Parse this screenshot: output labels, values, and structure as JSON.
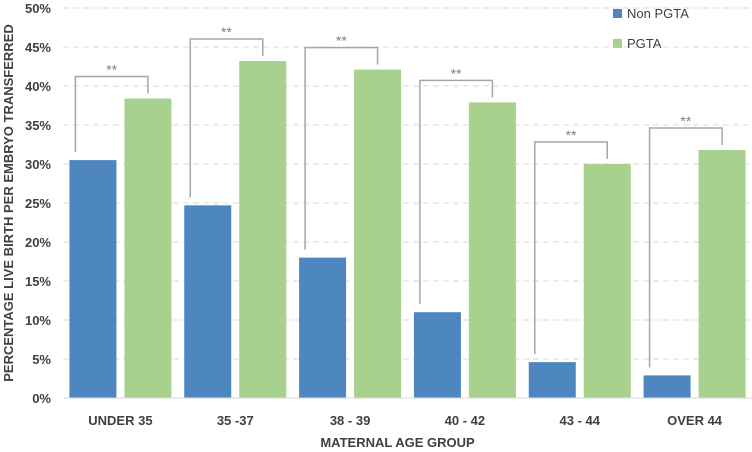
{
  "chart_data": {
    "type": "bar",
    "categories": [
      "UNDER 35",
      "35 -37",
      "38 - 39",
      "40 - 42",
      "43 - 44",
      "OVER 44"
    ],
    "series": [
      {
        "name": "Non PGTA",
        "color": "#4e86bf",
        "values": [
          30.5,
          24.7,
          18.0,
          11.0,
          4.6,
          2.9
        ]
      },
      {
        "name": "PGTA",
        "color": "#a9d18e",
        "values": [
          38.4,
          43.2,
          42.1,
          37.9,
          30.0,
          31.8
        ]
      }
    ],
    "xlabel": "MATERNAL AGE GROUP",
    "ylabel": "PERCENTAGE LIVE BIRTH PER EMBRYO TRANSFERRED",
    "ylim": [
      0,
      50
    ],
    "yticks": [
      "0%",
      "5%",
      "10%",
      "15%",
      "20%",
      "25%",
      "30%",
      "35%",
      "40%",
      "45%",
      "50%"
    ],
    "ytick_values": [
      0,
      5,
      10,
      15,
      20,
      25,
      30,
      35,
      40,
      45,
      50
    ],
    "significance_label": "**",
    "significance_color": "#a6a6a6",
    "grid": "dashed horizontal",
    "legend_position": "top-right"
  }
}
